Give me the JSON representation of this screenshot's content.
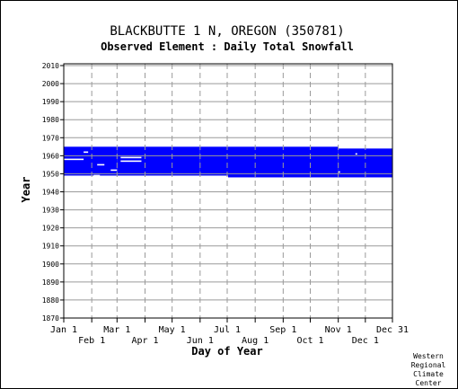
{
  "chart_data": {
    "type": "bar",
    "title": "BLACKBUTTE 1 N, OREGON   (350781)",
    "subtitle": "Observed Element : Daily Total Snowfall",
    "xlabel": "Day of Year",
    "ylabel": "Year",
    "xlim": [
      1,
      365
    ],
    "ylim": [
      1870,
      2011
    ],
    "x_ticks_top_row": [
      {
        "label": "Jan 1",
        "day": 1
      },
      {
        "label": "Mar 1",
        "day": 60
      },
      {
        "label": "May 1",
        "day": 121
      },
      {
        "label": "Jul 1",
        "day": 182
      },
      {
        "label": "Sep 1",
        "day": 244
      },
      {
        "label": "Nov 1",
        "day": 305
      },
      {
        "label": "Dec 31",
        "day": 365
      }
    ],
    "x_ticks_bottom_row": [
      {
        "label": "Feb 1",
        "day": 32
      },
      {
        "label": "Apr 1",
        "day": 91
      },
      {
        "label": "Jun 1",
        "day": 152
      },
      {
        "label": "Aug 1",
        "day": 213
      },
      {
        "label": "Oct 1",
        "day": 274
      },
      {
        "label": "Dec 1",
        "day": 335
      }
    ],
    "y_ticks": [
      1870,
      1880,
      1890,
      1900,
      1910,
      1920,
      1930,
      1940,
      1950,
      1960,
      1970,
      1980,
      1990,
      2000,
      2010
    ],
    "series_color": "#0000ff",
    "grid": true,
    "bars": [
      {
        "start_day": 1,
        "end_day": 60,
        "from_year": 1949,
        "to_year": 1965
      },
      {
        "start_day": 60,
        "end_day": 152,
        "from_year": 1949,
        "to_year": 1965
      },
      {
        "start_day": 152,
        "end_day": 183,
        "from_year": 1949,
        "to_year": 1965
      },
      {
        "start_day": 183,
        "end_day": 305,
        "from_year": 1948,
        "to_year": 1965
      },
      {
        "start_day": 305,
        "end_day": 365,
        "from_year": 1948,
        "to_year": 1964
      }
    ],
    "gaps": [
      {
        "start_day": 1,
        "end_day": 23,
        "year": 1958
      },
      {
        "start_day": 23,
        "end_day": 28,
        "year": 1962
      },
      {
        "start_day": 38,
        "end_day": 46,
        "year": 1955
      },
      {
        "start_day": 34,
        "end_day": 41,
        "year": 1949
      },
      {
        "start_day": 53,
        "end_day": 60,
        "year": 1952
      },
      {
        "start_day": 64,
        "end_day": 87,
        "year": 1959
      },
      {
        "start_day": 64,
        "end_day": 87,
        "year": 1957
      },
      {
        "start_day": 305,
        "end_day": 307,
        "year": 1951
      },
      {
        "start_day": 324,
        "end_day": 326,
        "year": 1961
      }
    ]
  },
  "credit": [
    "Western",
    "Regional",
    "Climate",
    "Center"
  ]
}
